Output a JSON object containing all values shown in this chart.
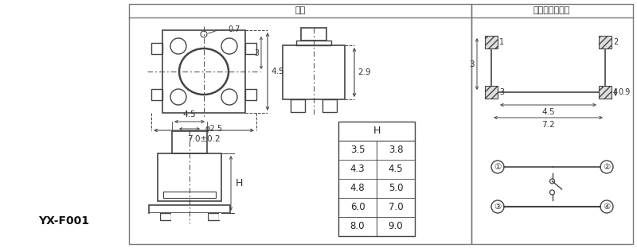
{
  "title_left": "尺寸",
  "title_right": "安装图及电路图",
  "model": "YX-F001",
  "table_header": "H",
  "table_data": [
    [
      "3.5",
      "3.8"
    ],
    [
      "4.3",
      "4.5"
    ],
    [
      "4.8",
      "5.0"
    ],
    [
      "6.0",
      "7.0"
    ],
    [
      "8.0",
      "9.0"
    ]
  ],
  "dim_top_width": "7.0±0.2",
  "dim_top_height": "4.5",
  "dim_top_3": "3",
  "dim_button": "0.7",
  "dim_side_height": "2.9",
  "dim_bottom_width": "4.5",
  "dim_bottom_circle": "φ2.5",
  "dim_bottom_H": "H",
  "dim_install_45": "4.5",
  "dim_install_72": "7.2",
  "dim_install_3": "3",
  "dim_install_09": "0.9",
  "bg_color": "#ffffff",
  "line_color": "#444444",
  "border_color": "#777777",
  "fig_width": 8.0,
  "fig_height": 3.12
}
